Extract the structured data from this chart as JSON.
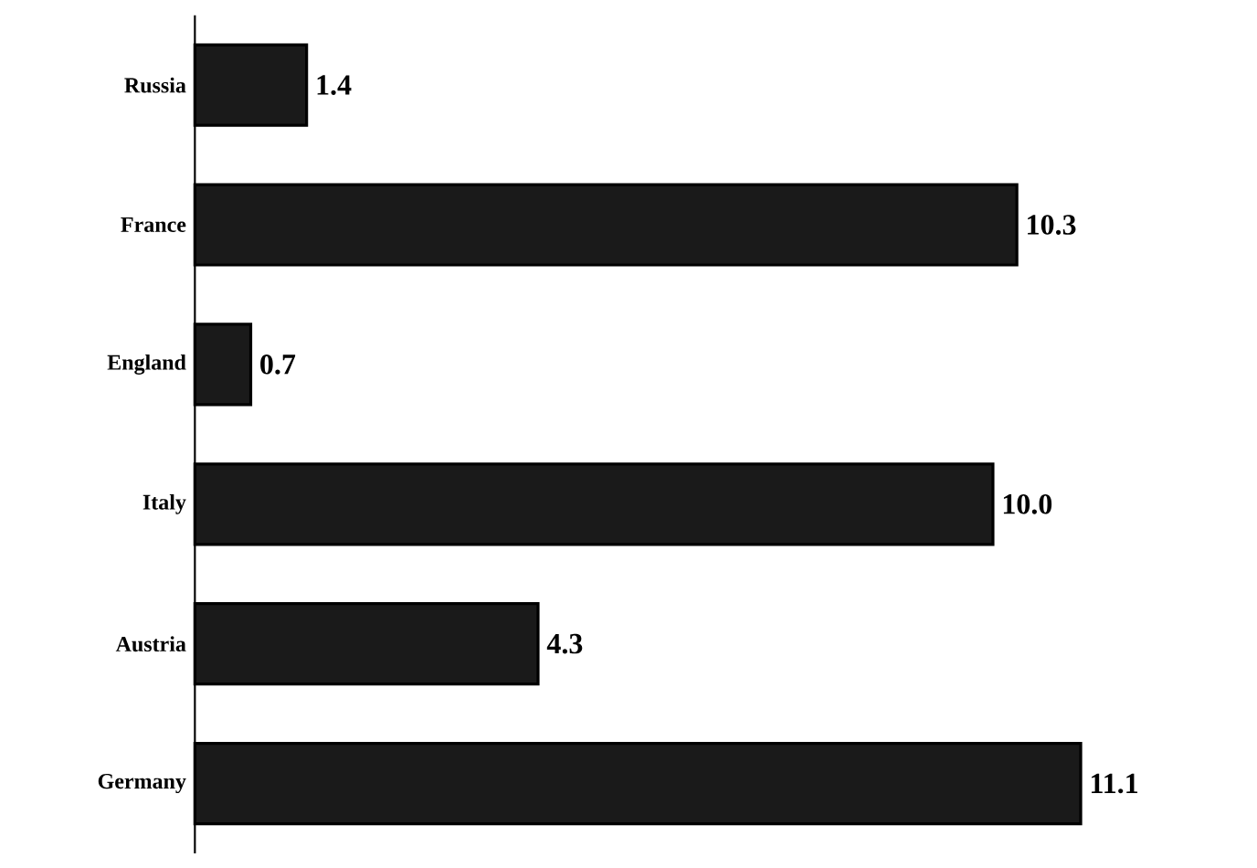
{
  "chart_data": {
    "type": "bar",
    "orientation": "horizontal",
    "categories": [
      "Russia",
      "France",
      "England",
      "Italy",
      "Austria",
      "Germany"
    ],
    "values": [
      1.4,
      10.3,
      0.7,
      10.0,
      4.3,
      11.1
    ],
    "value_labels": [
      "1.4",
      "10.3",
      "0.7",
      "10.0",
      "4.3",
      "11.1"
    ],
    "color": "#1a1a1a"
  }
}
